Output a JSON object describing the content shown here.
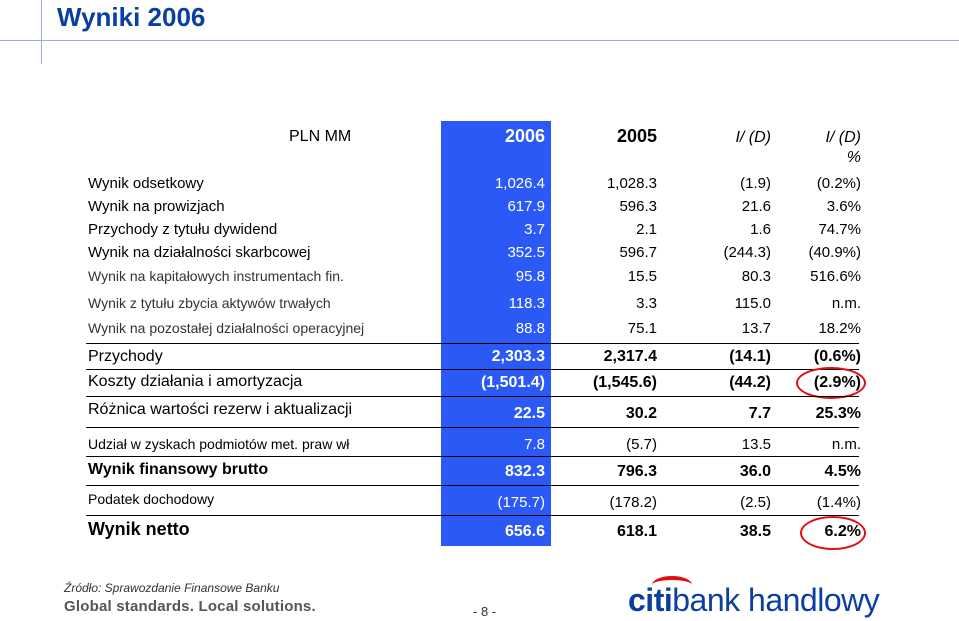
{
  "title": "Wyniki 2006",
  "header": {
    "unit": "PLN MM",
    "col2006": "2006",
    "col2005": "2005",
    "colID": "I/ (D)",
    "colIDpct": "I/ (D)",
    "colIDpct2": "%"
  },
  "rows": [
    {
      "label": "Wynik odsetkowy",
      "v2006": "1,026.4",
      "v2005": "1,028.3",
      "id": "(1.9)",
      "pct": "(0.2%)"
    },
    {
      "label": "Wynik na prowizjach",
      "v2006": "617.9",
      "v2005": "596.3",
      "id": "21.6",
      "pct": "3.6%"
    },
    {
      "label": "Przychody z tytułu dywidend",
      "v2006": "3.7",
      "v2005": "2.1",
      "id": "1.6",
      "pct": "74.7%"
    },
    {
      "label": "Wynik na działalności skarbcowej",
      "v2006": "352.5",
      "v2005": "596.7",
      "id": "(244.3)",
      "pct": "(40.9%)"
    },
    {
      "label": "Wynik na kapitałowych instrumentach fin.",
      "v2006": "95.8",
      "v2005": "15.5",
      "id": "80.3",
      "pct": "516.6%"
    },
    {
      "label": "Wynik z tytułu zbycia aktywów trwałych",
      "v2006": "118.3",
      "v2005": "3.3",
      "id": "115.0",
      "pct": "n.m."
    },
    {
      "label": "Wynik na pozostałej działalności operacyjnej",
      "v2006": "88.8",
      "v2005": "75.1",
      "id": "13.7",
      "pct": "18.2%"
    },
    {
      "label": "Przychody",
      "v2006": "2,303.3",
      "v2005": "2,317.4",
      "id": "(14.1)",
      "pct": "(0.6%)"
    },
    {
      "label": "Koszty działania i amortyzacja",
      "v2006": "(1,501.4)",
      "v2005": "(1,545.6)",
      "id": "(44.2)",
      "pct": "(2.9%)"
    },
    {
      "label": "Różnica wartości rezerw i aktualizacji",
      "v2006": "22.5",
      "v2005": "30.2",
      "id": "7.7",
      "pct": "25.3%"
    },
    {
      "label": "Udział w zyskach podmiotów met. praw wł",
      "v2006": "7.8",
      "v2005": "(5.7)",
      "id": "13.5",
      "pct": "n.m."
    },
    {
      "label": "Wynik finansowy brutto",
      "v2006": "832.3",
      "v2005": "796.3",
      "id": "36.0",
      "pct": "4.5%"
    },
    {
      "label": "Podatek dochodowy",
      "v2006": "(175.7)",
      "v2005": "(178.2)",
      "id": "(2.5)",
      "pct": "(1.4%)"
    },
    {
      "label": "Wynik netto",
      "v2006": "656.6",
      "v2005": "618.1",
      "id": "38.5",
      "pct": "6.2%"
    }
  ],
  "footer": {
    "source": "Źródło: Sprawozdanie Finansowe Banku",
    "slogan": "Global standards. Local solutions.",
    "page": "- 8 -",
    "logo_citi": "citi",
    "logo_rest": "bank handlowy"
  },
  "colors": {
    "title": "#0a3fa0",
    "highlight_column": "#2b59f5",
    "circle": "#e01010"
  }
}
